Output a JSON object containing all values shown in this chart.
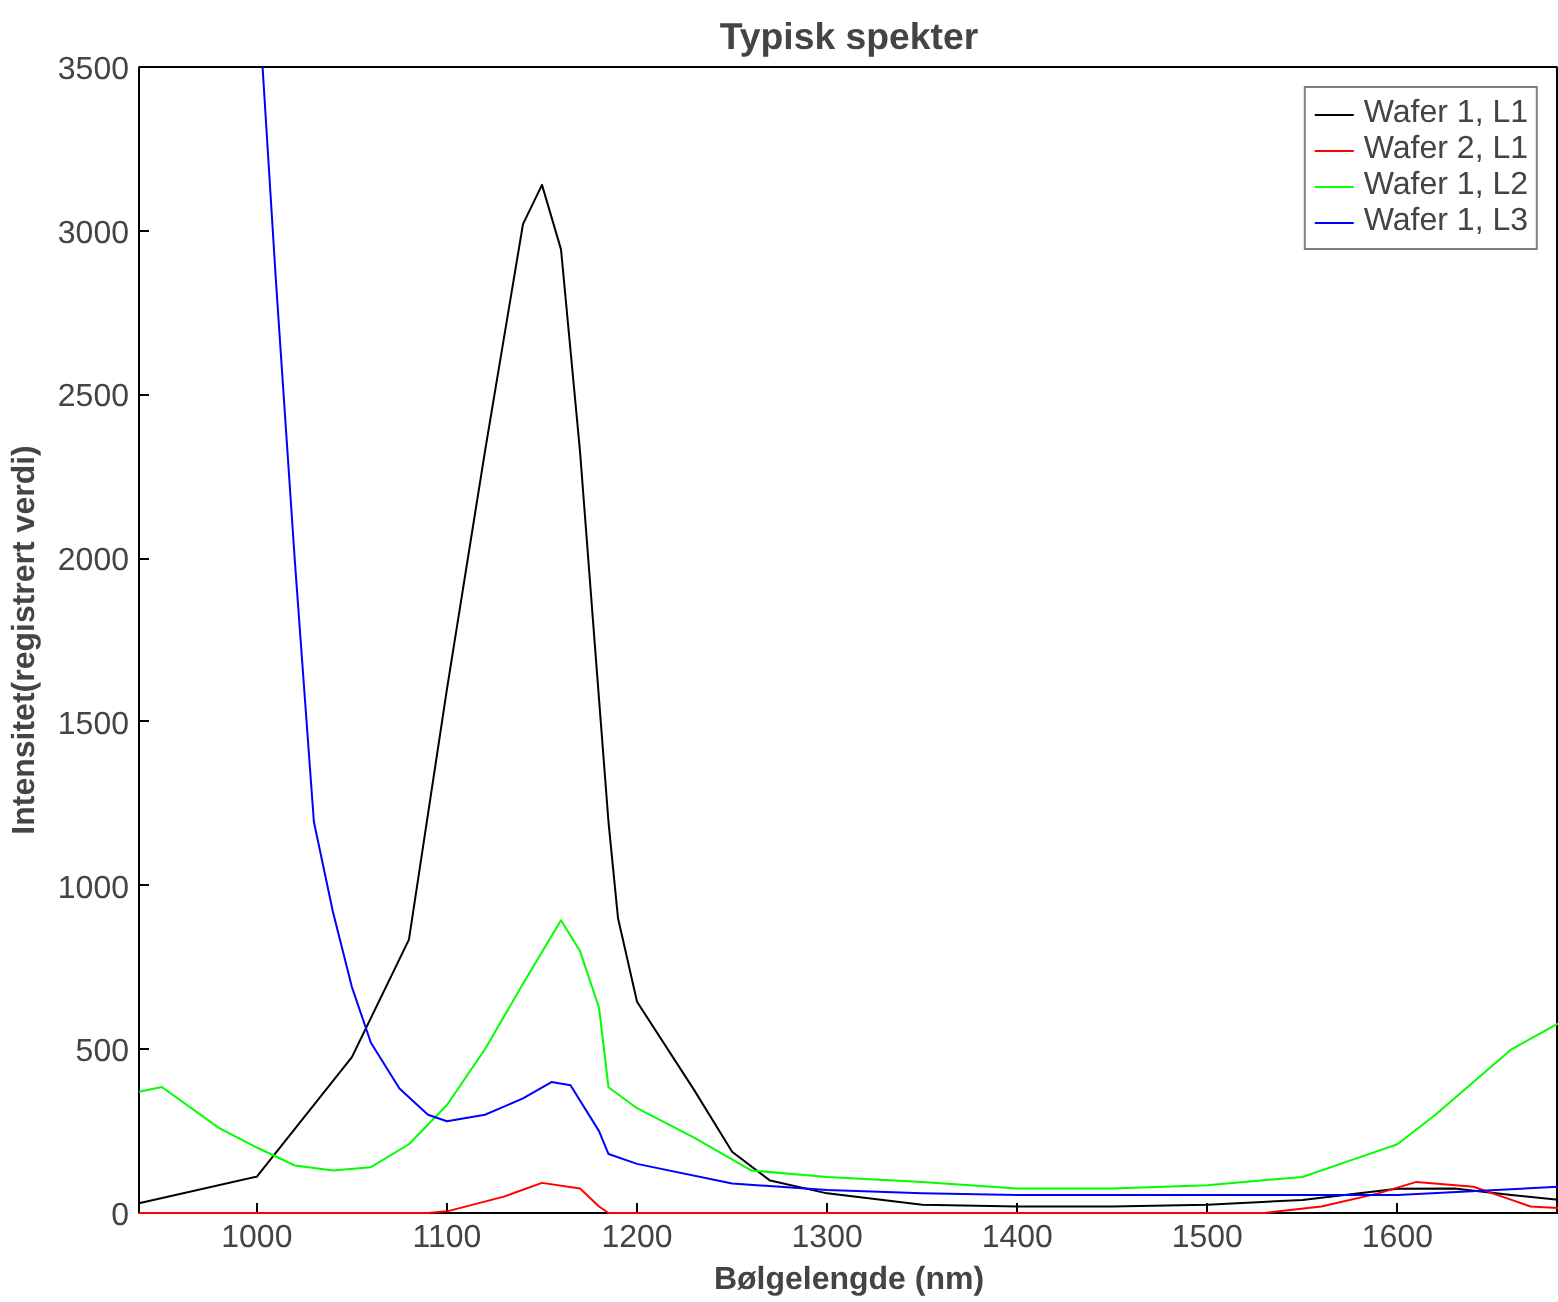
{
  "chart_data": {
    "type": "line",
    "title": "Typisk spekter",
    "xlabel": "Bølgelengde (nm)",
    "ylabel": "Intensitet(registrert verdi)",
    "xlim": [
      938,
      1685
    ],
    "ylim": [
      0,
      3500
    ],
    "xticks": [
      1000,
      1100,
      1200,
      1300,
      1400,
      1500,
      1600
    ],
    "yticks": [
      0,
      500,
      1000,
      1500,
      2000,
      2500,
      3000,
      3500
    ],
    "grid": false,
    "legend": "top right",
    "marker": "none",
    "line_style": "solid",
    "series": [
      {
        "name": "Wafer 1, L1",
        "color": "#000000",
        "x": [
          938,
          1000,
          1050,
          1080,
          1100,
          1120,
          1140,
          1150,
          1160,
          1170,
          1178,
          1185,
          1190,
          1200,
          1230,
          1250,
          1270,
          1300,
          1350,
          1400,
          1450,
          1500,
          1550,
          1600,
          1630,
          1660,
          1685
        ],
        "values": [
          30,
          111,
          476,
          835,
          1600,
          2326,
          3020,
          3140,
          2943,
          2326,
          1720,
          1193,
          900,
          645,
          376,
          187,
          99,
          60,
          25,
          20,
          20,
          25,
          40,
          74,
          75,
          55,
          40
        ]
      },
      {
        "name": "Wafer 2, L1",
        "color": "#ff0000",
        "x": [
          938,
          1090,
          1100,
          1130,
          1150,
          1170,
          1180,
          1185,
          1530,
          1560,
          1590,
          1610,
          1640,
          1660,
          1670,
          1685
        ],
        "values": [
          0,
          0,
          5,
          50,
          92,
          75,
          20,
          0,
          0,
          20,
          60,
          95,
          80,
          40,
          20,
          15
        ]
      },
      {
        "name": "Wafer 1, L2",
        "color": "#00ff00",
        "x": [
          938,
          950,
          980,
          1000,
          1020,
          1040,
          1060,
          1080,
          1100,
          1120,
          1140,
          1160,
          1170,
          1180,
          1185,
          1200,
          1230,
          1260,
          1300,
          1350,
          1400,
          1450,
          1500,
          1550,
          1580,
          1600,
          1620,
          1640,
          1660,
          1685
        ],
        "values": [
          370,
          385,
          260,
          200,
          145,
          130,
          140,
          210,
          330,
          500,
          700,
          894,
          800,
          627,
          384,
          320,
          230,
          130,
          110,
          95,
          75,
          75,
          85,
          110,
          170,
          210,
          300,
          400,
          500,
          580
        ]
      },
      {
        "name": "Wafer 1, L3",
        "color": "#0000ff",
        "x": [
          1003,
          1010,
          1020,
          1030,
          1040,
          1050,
          1060,
          1075,
          1090,
          1100,
          1120,
          1140,
          1155,
          1165,
          1180,
          1185,
          1200,
          1250,
          1300,
          1350,
          1400,
          1500,
          1600,
          1685
        ],
        "values": [
          3500,
          2850,
          1990,
          1195,
          920,
          690,
          520,
          380,
          300,
          280,
          300,
          350,
          400,
          390,
          250,
          180,
          150,
          90,
          70,
          60,
          55,
          55,
          55,
          80
        ]
      }
    ]
  }
}
